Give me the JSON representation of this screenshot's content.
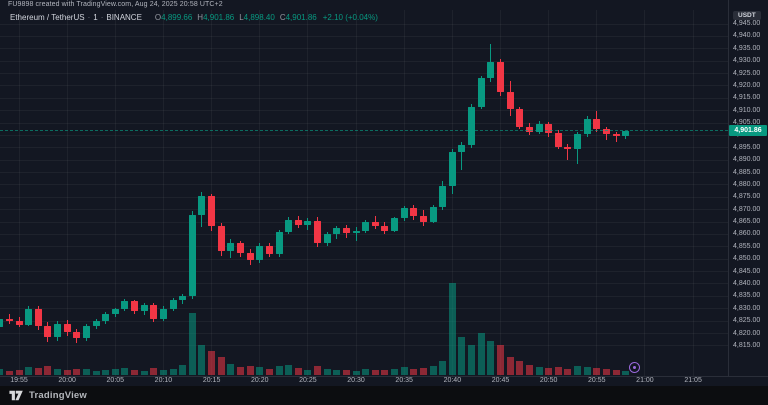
{
  "attribution": {
    "text": "FU9898 created with TradingView.com, Aug 24, 2025 20:58 UTC+2"
  },
  "legend": {
    "symbol_title": "Ethereum / TetherUS",
    "sep": "·",
    "interval": "1",
    "exchange": "BINANCE",
    "o_label": "O",
    "o": "4,899.66",
    "h_label": "H",
    "h": "4,901.86",
    "l_label": "L",
    "l": "4,898.40",
    "c_label": "C",
    "c": "4,901.86",
    "change": "+2.10 (+0.04%)"
  },
  "footer": {
    "brand": "TradingView"
  },
  "colors": {
    "background": "#131722",
    "up": "#089981",
    "down": "#f23645",
    "up_volume": "rgba(8,153,129,0.55)",
    "down_volume": "rgba(242,54,69,0.55)",
    "grid": "rgba(178,181,190,0.07)",
    "axis_text": "#b2b5be",
    "pane_border": "#2a2e39",
    "marker_accent": "#9c6ade",
    "price_badge_bg": "#089981",
    "footer_bg": "#0c0d10"
  },
  "chart_data": {
    "type": "candlestick",
    "title": "Ethereum / TetherUS · 1 · BINANCE",
    "interval_minutes": 1,
    "last_price": 4901.86,
    "last_price_label": "4,901.86",
    "price_axis": {
      "unit": "USDT",
      "labels": [
        "4,945.00",
        "4,940.00",
        "4,935.00",
        "4,930.00",
        "4,925.00",
        "4,920.00",
        "4,915.00",
        "4,910.00",
        "4,905.00",
        "4,900.00",
        "4,895.00",
        "4,890.00",
        "4,885.00",
        "4,880.00",
        "4,875.00",
        "4,870.00",
        "4,865.00",
        "4,860.00",
        "4,855.00",
        "4,850.00",
        "4,845.00",
        "4,840.00",
        "4,835.00",
        "4,830.00",
        "4,825.00",
        "4,820.00",
        "4,815.00"
      ]
    },
    "time_axis": {
      "labels": [
        "19:55",
        "20:00",
        "20:05",
        "20:10",
        "20:15",
        "20:20",
        "20:25",
        "20:30",
        "20:35",
        "20:40",
        "20:45",
        "20:50",
        "20:55",
        "21:00",
        "21:05"
      ]
    },
    "volume_unit": "relative",
    "columns": [
      "time",
      "open",
      "high",
      "low",
      "close",
      "volume"
    ],
    "candles": [
      [
        "19:53",
        4822.5,
        4827.0,
        4820.5,
        4826.0,
        6
      ],
      [
        "19:54",
        4826.0,
        4828.0,
        4824.0,
        4825.0,
        4
      ],
      [
        "19:55",
        4825.0,
        4826.5,
        4822.5,
        4823.5,
        5
      ],
      [
        "19:56",
        4823.5,
        4831.0,
        4823.0,
        4830.0,
        8
      ],
      [
        "19:57",
        4830.0,
        4831.0,
        4821.5,
        4823.0,
        7
      ],
      [
        "19:58",
        4823.0,
        4824.5,
        4816.5,
        4818.5,
        9
      ],
      [
        "19:59",
        4818.5,
        4825.0,
        4817.0,
        4824.0,
        6
      ],
      [
        "20:00",
        4824.0,
        4825.5,
        4819.0,
        4820.5,
        5
      ],
      [
        "20:01",
        4820.5,
        4822.0,
        4816.0,
        4818.0,
        6
      ],
      [
        "20:02",
        4818.0,
        4824.0,
        4817.0,
        4823.0,
        6
      ],
      [
        "20:03",
        4823.0,
        4826.0,
        4822.0,
        4825.0,
        4
      ],
      [
        "20:04",
        4825.0,
        4828.5,
        4824.0,
        4828.0,
        5
      ],
      [
        "20:05",
        4828.0,
        4830.5,
        4826.5,
        4830.0,
        6
      ],
      [
        "20:06",
        4830.0,
        4834.0,
        4829.0,
        4833.0,
        7
      ],
      [
        "20:07",
        4833.0,
        4833.5,
        4828.0,
        4829.0,
        5
      ],
      [
        "20:08",
        4829.0,
        4832.5,
        4827.5,
        4831.5,
        4
      ],
      [
        "20:09",
        4831.5,
        4832.5,
        4824.5,
        4826.0,
        7
      ],
      [
        "20:10",
        4826.0,
        4831.0,
        4825.0,
        4830.0,
        5
      ],
      [
        "20:11",
        4830.0,
        4834.5,
        4829.0,
        4833.5,
        6
      ],
      [
        "20:12",
        4833.5,
        4836.0,
        4832.0,
        4835.0,
        10
      ],
      [
        "20:13",
        4835.0,
        4869.5,
        4834.0,
        4868.0,
        62
      ],
      [
        "20:14",
        4868.0,
        4877.0,
        4863.0,
        4875.5,
        30
      ],
      [
        "20:15",
        4875.5,
        4876.5,
        4861.5,
        4863.5,
        24
      ],
      [
        "20:16",
        4863.5,
        4864.5,
        4851.5,
        4853.5,
        18
      ],
      [
        "20:17",
        4853.5,
        4858.0,
        4850.5,
        4856.5,
        11
      ],
      [
        "20:18",
        4856.5,
        4857.5,
        4851.0,
        4852.5,
        8
      ],
      [
        "20:19",
        4852.5,
        4854.0,
        4847.5,
        4849.5,
        9
      ],
      [
        "20:20",
        4849.5,
        4856.5,
        4848.5,
        4855.5,
        8
      ],
      [
        "20:21",
        4855.5,
        4856.5,
        4851.0,
        4852.0,
        6
      ],
      [
        "20:22",
        4852.0,
        4862.0,
        4851.0,
        4861.0,
        9
      ],
      [
        "20:23",
        4861.0,
        4867.0,
        4860.0,
        4866.0,
        10
      ],
      [
        "20:24",
        4866.0,
        4867.5,
        4862.5,
        4864.0,
        7
      ],
      [
        "20:25",
        4864.0,
        4866.5,
        4862.0,
        4865.5,
        5
      ],
      [
        "20:26",
        4865.5,
        4867.0,
        4855.0,
        4856.5,
        9
      ],
      [
        "20:27",
        4856.5,
        4861.0,
        4855.5,
        4860.0,
        6
      ],
      [
        "20:28",
        4860.0,
        4863.5,
        4858.0,
        4862.5,
        5
      ],
      [
        "20:29",
        4862.5,
        4864.0,
        4858.5,
        4860.5,
        5
      ],
      [
        "20:30",
        4860.5,
        4863.0,
        4857.5,
        4861.5,
        4
      ],
      [
        "20:31",
        4861.5,
        4866.0,
        4860.5,
        4865.0,
        6
      ],
      [
        "20:32",
        4865.0,
        4867.5,
        4862.0,
        4863.5,
        5
      ],
      [
        "20:33",
        4863.5,
        4865.0,
        4860.0,
        4861.5,
        5
      ],
      [
        "20:34",
        4861.5,
        4867.0,
        4861.0,
        4866.5,
        6
      ],
      [
        "20:35",
        4866.5,
        4871.5,
        4865.5,
        4870.5,
        8
      ],
      [
        "20:36",
        4870.5,
        4872.0,
        4866.0,
        4867.5,
        6
      ],
      [
        "20:37",
        4867.5,
        4870.0,
        4863.5,
        4865.0,
        7
      ],
      [
        "20:38",
        4865.0,
        4872.0,
        4864.5,
        4871.0,
        9
      ],
      [
        "20:39",
        4871.0,
        4881.5,
        4870.0,
        4879.5,
        14
      ],
      [
        "20:40",
        4879.5,
        4894.5,
        4876.5,
        4893.5,
        92
      ],
      [
        "20:41",
        4893.5,
        4897.5,
        4886.0,
        4896.0,
        38
      ],
      [
        "20:42",
        4896.0,
        4912.5,
        4895.0,
        4911.5,
        30
      ],
      [
        "20:43",
        4911.5,
        4924.0,
        4910.5,
        4923.0,
        42
      ],
      [
        "20:44",
        4923.0,
        4937.0,
        4921.5,
        4929.5,
        34
      ],
      [
        "20:45",
        4929.5,
        4931.0,
        4916.0,
        4917.5,
        30
      ],
      [
        "20:46",
        4917.5,
        4922.0,
        4908.0,
        4910.5,
        18
      ],
      [
        "20:47",
        4910.5,
        4911.5,
        4902.5,
        4903.5,
        14
      ],
      [
        "20:48",
        4903.5,
        4905.0,
        4900.0,
        4901.5,
        10
      ],
      [
        "20:49",
        4901.5,
        4906.0,
        4900.5,
        4904.5,
        8
      ],
      [
        "20:50",
        4904.5,
        4905.5,
        4899.5,
        4901.0,
        7
      ],
      [
        "20:51",
        4901.0,
        4902.0,
        4894.5,
        4895.5,
        8
      ],
      [
        "20:52",
        4895.5,
        4896.5,
        4890.0,
        4894.5,
        6
      ],
      [
        "20:53",
        4894.5,
        4901.5,
        4888.5,
        4900.5,
        9
      ],
      [
        "20:54",
        4900.5,
        4908.0,
        4899.5,
        4906.5,
        8
      ],
      [
        "20:55",
        4906.5,
        4910.0,
        4901.5,
        4902.5,
        7
      ],
      [
        "20:56",
        4902.5,
        4903.5,
        4898.0,
        4900.5,
        6
      ],
      [
        "20:57",
        4900.5,
        4901.5,
        4897.5,
        4899.76,
        5
      ],
      [
        "20:58",
        4899.66,
        4901.86,
        4898.4,
        4901.86,
        4
      ]
    ]
  }
}
